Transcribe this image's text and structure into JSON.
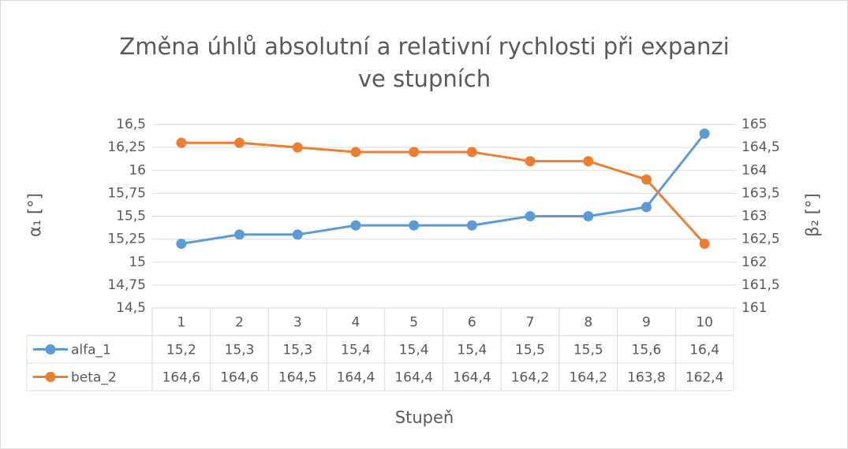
{
  "chart_data": {
    "type": "line",
    "title": "Změna úhlů absolutní a relativní rychlosti při expanzi ve stupních",
    "xlabel": "Stupeň",
    "ylabel": "α₁ [°]",
    "y2label": "β₂ [°]",
    "categories": [
      "1",
      "2",
      "3",
      "4",
      "5",
      "6",
      "7",
      "8",
      "9",
      "10"
    ],
    "ylim": [
      14.5,
      16.5
    ],
    "yticks": [
      {
        "value": 14.5,
        "label": "14,5"
      },
      {
        "value": 14.75,
        "label": "14,75"
      },
      15,
      {
        "value": 15.25,
        "label": "15,25"
      },
      {
        "value": 15.5,
        "label": "15,5"
      },
      {
        "value": 15.75,
        "label": "15,75"
      },
      16,
      {
        "value": 16.25,
        "label": "16,25"
      },
      {
        "value": 16.5,
        "label": "16,5"
      }
    ],
    "y2lim": [
      161,
      165
    ],
    "y2ticks": [
      161,
      {
        "value": 161.5,
        "label": "161,5"
      },
      162,
      {
        "value": 162.5,
        "label": "162,5"
      },
      163,
      {
        "value": 163.5,
        "label": "163,5"
      },
      164,
      {
        "value": 164.5,
        "label": "164,5"
      },
      165
    ],
    "grid": true,
    "series": [
      {
        "name": "alfa_1",
        "color": "#5b9bd5",
        "axis": "y",
        "values": [
          15.2,
          15.3,
          15.3,
          15.4,
          15.4,
          15.4,
          15.5,
          15.5,
          15.6,
          16.4
        ],
        "value_labels": [
          "15,2",
          "15,3",
          "15,3",
          "15,4",
          "15,4",
          "15,4",
          "15,5",
          "15,5",
          "15,6",
          "16,4"
        ]
      },
      {
        "name": "beta_2",
        "color": "#ed7d31",
        "axis": "y2",
        "values": [
          164.6,
          164.6,
          164.5,
          164.4,
          164.4,
          164.4,
          164.2,
          164.2,
          163.8,
          162.4
        ],
        "value_labels": [
          "164,6",
          "164,6",
          "164,5",
          "164,4",
          "164,4",
          "164,4",
          "164,2",
          "164,2",
          "163,8",
          "162,4"
        ]
      }
    ]
  }
}
